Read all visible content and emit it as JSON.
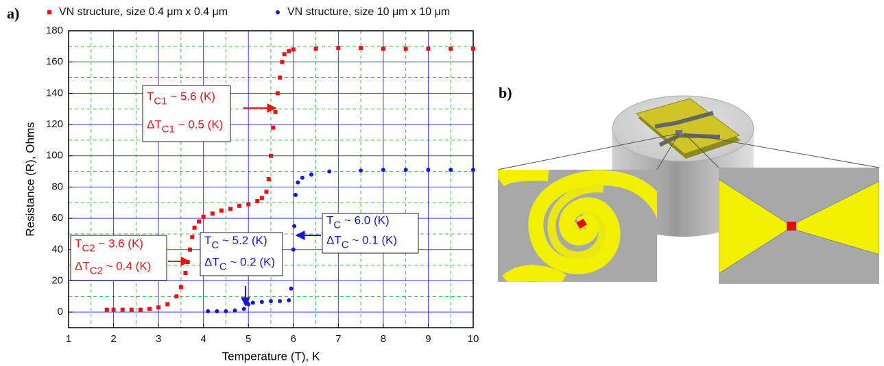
{
  "chart_data": {
    "type": "scatter",
    "panel_label": "a)",
    "x_label": "Temperature (T), K",
    "y_label": "Resistance (R), Ohms",
    "xlim": [
      1,
      10
    ],
    "ylim": [
      -10,
      180
    ],
    "xticks": [
      1,
      2,
      3,
      4,
      5,
      6,
      7,
      8,
      9,
      10
    ],
    "yticks": [
      0,
      20,
      40,
      60,
      80,
      100,
      120,
      140,
      160,
      180
    ],
    "grid": true,
    "minor_grid": true,
    "series": [
      {
        "name": "VN structure, size 0.4 μm x 0.4 μm",
        "color": "#ee1111",
        "marker": "square",
        "x": [
          1.85,
          2.0,
          2.2,
          2.4,
          2.6,
          2.8,
          3.0,
          3.2,
          3.4,
          3.5,
          3.6,
          3.65,
          3.7,
          3.75,
          3.8,
          3.9,
          4.0,
          4.2,
          4.4,
          4.6,
          4.8,
          5.0,
          5.2,
          5.3,
          5.4,
          5.45,
          5.5,
          5.55,
          5.6,
          5.65,
          5.7,
          5.75,
          5.8,
          5.9,
          6.0,
          6.5,
          7.0,
          7.5,
          8.0,
          8.5,
          9.0,
          9.5,
          10.0
        ],
        "values": [
          1.5,
          1.5,
          1.5,
          1.5,
          1.5,
          2,
          3,
          5,
          10,
          16,
          25,
          32,
          40,
          48,
          54,
          58,
          61,
          63,
          65,
          66,
          68,
          69,
          71,
          73,
          77,
          85,
          100,
          118,
          128,
          140,
          150,
          160,
          165,
          167,
          168,
          168.5,
          169,
          169,
          168.5,
          168.5,
          168.5,
          168.5,
          168.5
        ]
      },
      {
        "name": "VN structure, size 10 μm x 10 μm",
        "color": "#1515dd",
        "marker": "circle",
        "x": [
          4.1,
          4.3,
          4.5,
          4.7,
          4.9,
          5.0,
          5.1,
          5.3,
          5.5,
          5.7,
          5.9,
          5.95,
          6.0,
          6.02,
          6.05,
          6.1,
          6.2,
          6.4,
          6.8,
          7.5,
          8.0,
          8.5,
          9.0,
          9.5,
          10.0
        ],
        "values": [
          0.5,
          0.5,
          0.5,
          1,
          2,
          5,
          6,
          6.5,
          7,
          7,
          7.5,
          15,
          40,
          55,
          75,
          83,
          86,
          88,
          90,
          90.5,
          91,
          91,
          91,
          91,
          91
        ]
      }
    ],
    "annotations": [
      {
        "color": "#ee1111",
        "lines": [
          {
            "main": "T",
            "sub": "C1",
            "rest": " ~ 5.6 (K)"
          },
          {
            "main": "ΔT",
            "sub": "C1",
            "rest": " ~ 0.5 (K)"
          }
        ]
      },
      {
        "color": "#ee1111",
        "lines": [
          {
            "main": "T",
            "sub": "C2",
            "rest": " ~ 3.6 (K)"
          },
          {
            "main": "ΔT",
            "sub": "C2",
            "rest": " ~ 0.4 (K)"
          }
        ]
      },
      {
        "color": "#1515dd",
        "lines": [
          {
            "main": "T",
            "sub": "C",
            "rest": " ~ 5.2 (K)"
          },
          {
            "main": "ΔT",
            "sub": "C",
            "rest": " ~ 0.2 (K)"
          }
        ]
      },
      {
        "color": "#1515dd",
        "lines": [
          {
            "main": "T",
            "sub": "C",
            "rest": " ~ 6.0 (K)"
          },
          {
            "main": "ΔT",
            "sub": "C",
            "rest": " ~ 0.1 (K)"
          }
        ]
      }
    ]
  },
  "illustration": {
    "panel_label": "b)"
  }
}
